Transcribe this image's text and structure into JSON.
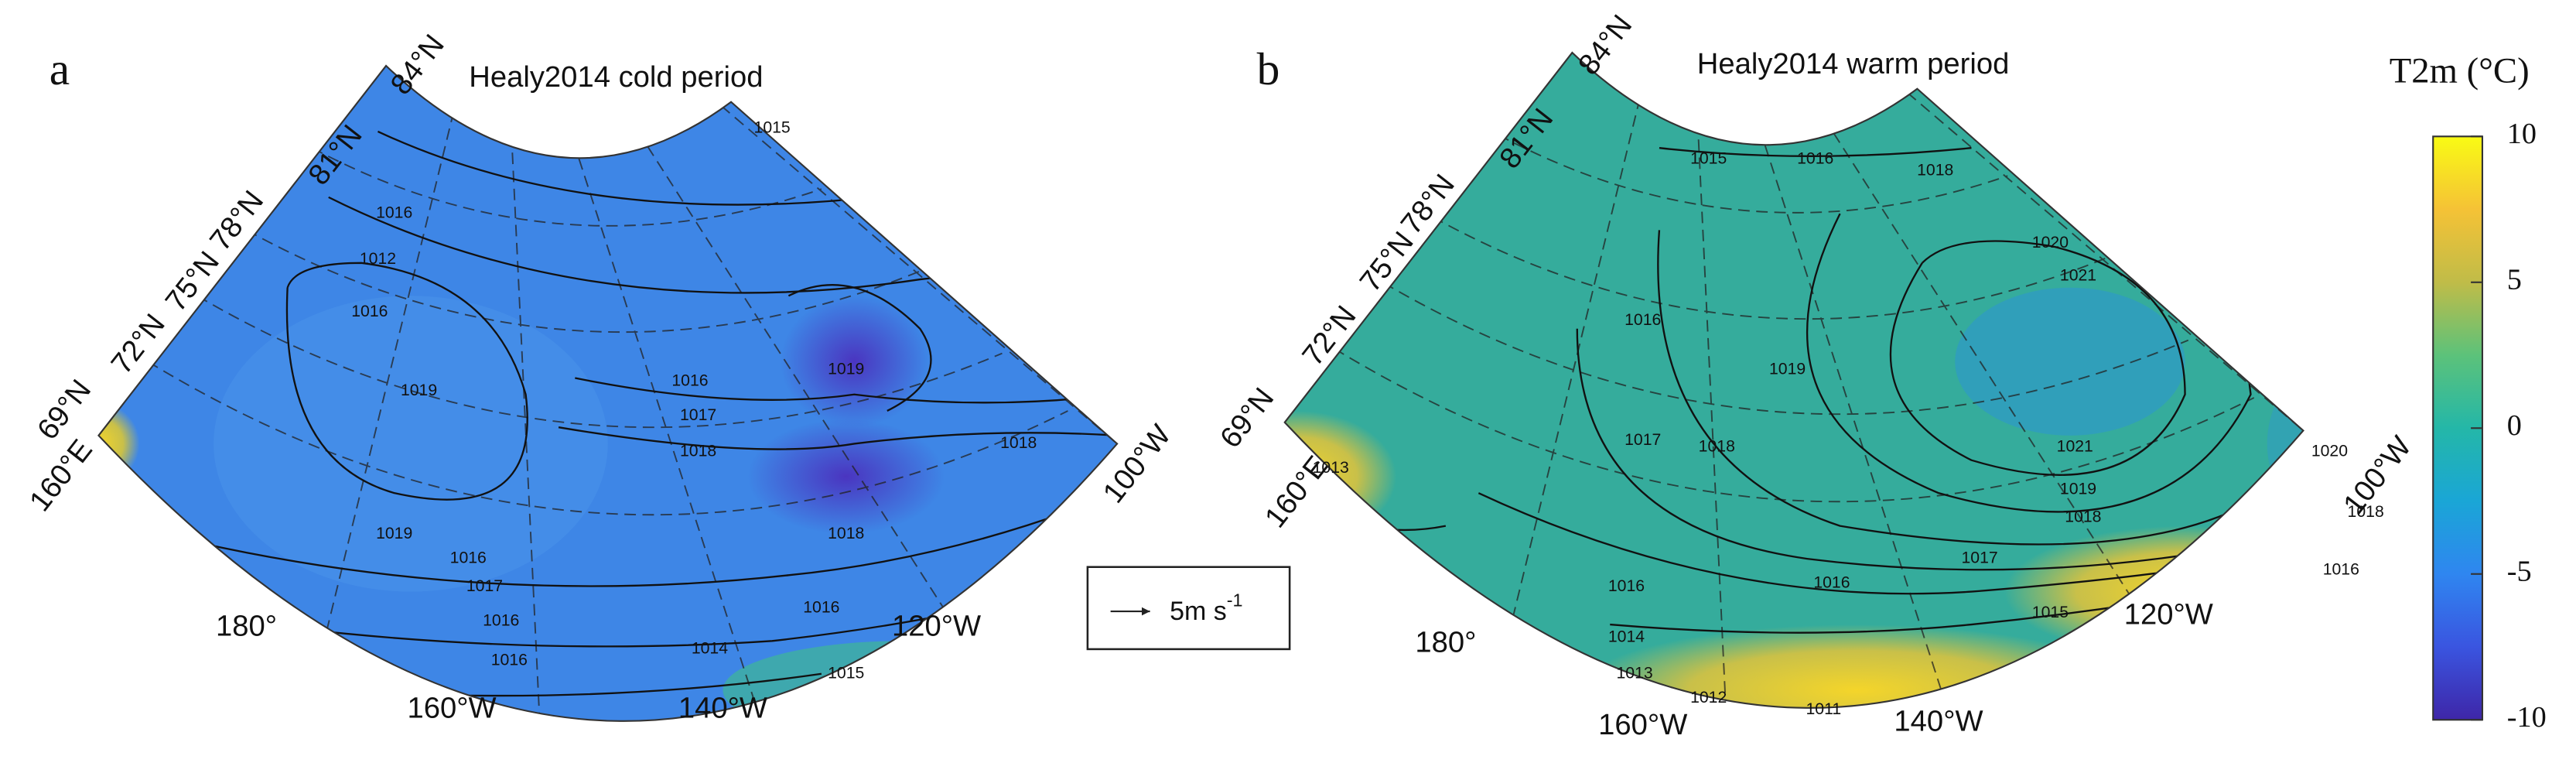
{
  "panels": [
    {
      "label": "a",
      "title": "Healy2014 cold period",
      "lat_labels": [
        "84°N",
        "81°N",
        "78°N",
        "75°N",
        "72°N",
        "69°N"
      ],
      "lon_labels": [
        "160°E",
        "180°",
        "160°W",
        "140°W",
        "120°W",
        "100°W"
      ],
      "contour_labels": [
        "1015",
        "1016",
        "1012",
        "1016",
        "1019",
        "1019",
        "1016",
        "1017",
        "1018",
        "1018",
        "1019",
        "1016",
        "1017",
        "1016",
        "1016",
        "1018",
        "1014",
        "1015",
        "1016"
      ]
    },
    {
      "label": "b",
      "title": "Healy2014 warm period",
      "lat_labels": [
        "84°N",
        "81°N",
        "78°N",
        "75°N",
        "72°N",
        "69°N"
      ],
      "lon_labels": [
        "160°E",
        "180°",
        "160°W",
        "140°W",
        "120°W",
        "100°W"
      ],
      "contour_labels": [
        "1015",
        "1016",
        "1018",
        "1020",
        "1021",
        "1019",
        "1016",
        "1017",
        "1018",
        "1021",
        "1019",
        "1018",
        "1017",
        "1016",
        "1015",
        "1014",
        "1013",
        "1012",
        "1011",
        "1013",
        "1016",
        "1020",
        "1018",
        "1016"
      ]
    }
  ],
  "legend": {
    "text": "5m s",
    "superscript": "-1"
  },
  "colorbar": {
    "title": "T2m (°C)",
    "range": [
      -10,
      10
    ],
    "ticks": [
      10,
      5,
      0,
      -5,
      -10
    ],
    "colors": [
      "#3e26a8",
      "#3a55e0",
      "#2f86f0",
      "#1aa6d6",
      "#24b7a8",
      "#5cc27a",
      "#c0bc48",
      "#f5c236",
      "#f9fb14"
    ]
  }
}
